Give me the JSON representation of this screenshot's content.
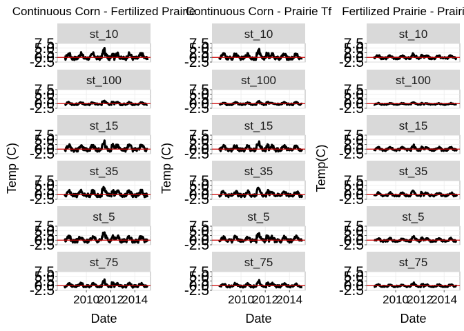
{
  "colors": {
    "strip_bg": "#d9d9d9",
    "strip_text": "#1a1a1a",
    "panel_bg": "#ffffff",
    "grid": "#ebebeb",
    "data": "#000000",
    "ref_line": "#cc0000",
    "text": "#000000"
  },
  "chart_data": [
    {
      "type": "scatter",
      "title": "Continuous Corn - Fertilized Prairie",
      "xlabel": "Date",
      "ylabel": "Temp (C)",
      "ylim": [
        -2.5,
        7.5
      ],
      "yticks": [
        "-2.5",
        "0.0",
        "2.5",
        "5.0",
        "7.5"
      ],
      "xticks": [
        "2010",
        "2012",
        "2014"
      ],
      "xlim": [
        2007.6,
        2015.3
      ],
      "reference_line": 0,
      "amplitude": 1.0,
      "facets": [
        "st_10",
        "st_100",
        "st_15",
        "st_35",
        "st_5",
        "st_75"
      ]
    },
    {
      "type": "scatter",
      "title": "Continuous Corn - Prairie Tf",
      "xlabel": "Date",
      "ylabel": "Temp (C)",
      "ylim": [
        -2.5,
        7.5
      ],
      "yticks": [
        "-2.5",
        "0.0",
        "2.5",
        "5.0",
        "7.5"
      ],
      "xticks": [
        "2010",
        "2012",
        "2014"
      ],
      "xlim": [
        2007.6,
        2015.3
      ],
      "reference_line": 0,
      "amplitude": 0.9,
      "facets": [
        "st_10",
        "st_100",
        "st_15",
        "st_35",
        "st_5",
        "st_75"
      ]
    },
    {
      "type": "scatter",
      "title": "Fertilized Prairie - Prairie Tf",
      "xlabel": "Date",
      "ylabel": "Temp(C)",
      "ylim": [
        -2.5,
        7.5
      ],
      "yticks": [
        "-2.5",
        "0.0",
        "2.5",
        "5.0",
        "7.5"
      ],
      "xticks": [
        "2010",
        "2012",
        "2014"
      ],
      "xlim": [
        2007.6,
        2015.3
      ],
      "reference_line": 0,
      "amplitude": 0.55,
      "facets": [
        "st_10",
        "st_100",
        "st_15",
        "st_35",
        "st_5",
        "st_75"
      ]
    }
  ]
}
